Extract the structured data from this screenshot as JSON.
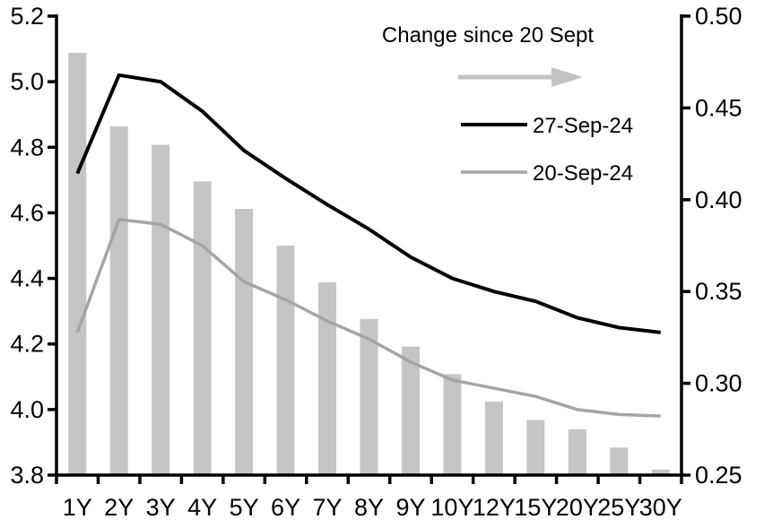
{
  "chart_data": {
    "type": "combo",
    "categories": [
      "1Y",
      "2Y",
      "3Y",
      "4Y",
      "5Y",
      "6Y",
      "7Y",
      "8Y",
      "9Y",
      "10Y",
      "12Y",
      "15Y",
      "20Y",
      "25Y",
      "30Y"
    ],
    "bar_series": {
      "name": "Change since 20 Sept",
      "axis": "right",
      "color": "#c5c5c5",
      "values": [
        0.48,
        0.44,
        0.43,
        0.41,
        0.395,
        0.375,
        0.355,
        0.335,
        0.32,
        0.305,
        0.29,
        0.28,
        0.275,
        0.265,
        0.253
      ]
    },
    "series": [
      {
        "name": "27-Sep-24",
        "axis": "left",
        "color": "#000000",
        "values": [
          4.72,
          5.02,
          5.0,
          4.91,
          4.79,
          4.705,
          4.625,
          4.55,
          4.465,
          4.4,
          4.36,
          4.33,
          4.28,
          4.25,
          4.235
        ]
      },
      {
        "name": "20-Sep-24",
        "axis": "left",
        "color": "#a5a5a5",
        "values": [
          4.235,
          4.58,
          4.565,
          4.5,
          4.39,
          4.335,
          4.27,
          4.215,
          4.145,
          4.09,
          4.065,
          4.04,
          4.0,
          3.985,
          3.98
        ]
      }
    ],
    "left_axis": {
      "min": 3.8,
      "max": 5.2,
      "step": 0.2,
      "tick_labels": [
        "3.8",
        "4.0",
        "4.2",
        "4.4",
        "4.6",
        "4.8",
        "5.0",
        "5.2"
      ]
    },
    "right_axis": {
      "min": 0.25,
      "max": 0.5,
      "step": 0.05,
      "tick_labels": [
        "0.25",
        "0.30",
        "0.35",
        "0.40",
        "0.45",
        "0.50"
      ]
    },
    "legend": {
      "title": "Change since 20 Sept",
      "arrow_color": "#c3c3c3",
      "entries": [
        "27-Sep-24",
        "20-Sep-24"
      ]
    },
    "grid": false,
    "legend_position": "top-right-inside",
    "background": "#ffffff",
    "axis_color": "#000000"
  }
}
